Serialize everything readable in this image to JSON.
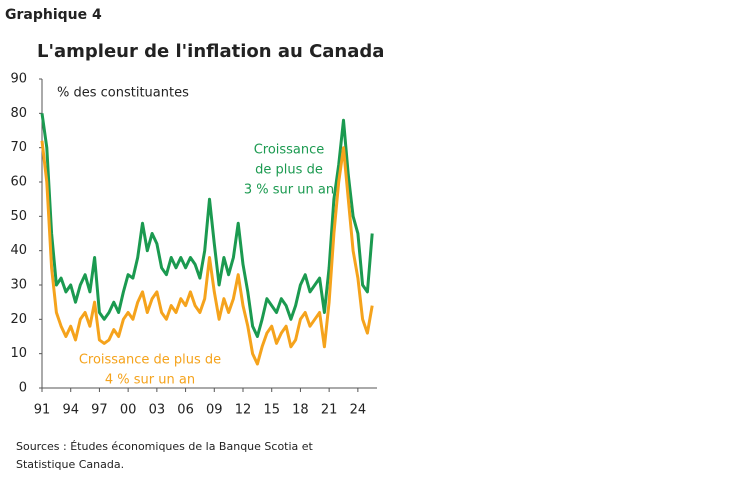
{
  "label": "Graphique 4",
  "chart_data": {
    "type": "line",
    "title": "L'ampleur de l'inflation au Canada",
    "y_label": "% des constituantes",
    "x": [
      1991.0,
      1991.5,
      1992.0,
      1992.5,
      1993.0,
      1993.5,
      1994.0,
      1994.5,
      1995.0,
      1995.5,
      1996.0,
      1996.5,
      1997.0,
      1997.5,
      1998.0,
      1998.5,
      1999.0,
      1999.5,
      2000.0,
      2000.5,
      2001.0,
      2001.5,
      2002.0,
      2002.5,
      2003.0,
      2003.5,
      2004.0,
      2004.5,
      2005.0,
      2005.5,
      2006.0,
      2006.5,
      2007.0,
      2007.5,
      2008.0,
      2008.5,
      2009.0,
      2009.5,
      2010.0,
      2010.5,
      2011.0,
      2011.5,
      2012.0,
      2012.5,
      2013.0,
      2013.5,
      2014.0,
      2014.5,
      2015.0,
      2015.5,
      2016.0,
      2016.5,
      2017.0,
      2017.5,
      2018.0,
      2018.5,
      2019.0,
      2019.5,
      2020.0,
      2020.5,
      2021.0,
      2021.5,
      2022.0,
      2022.5,
      2023.0,
      2023.5,
      2024.0,
      2024.5,
      2025.0,
      2025.5
    ],
    "series": [
      {
        "name": [
          "Croissance",
          "de plus de",
          "3 % sur un an"
        ],
        "color": "#1b9a50",
        "values": [
          80,
          70,
          45,
          30,
          32,
          28,
          30,
          25,
          30,
          33,
          28,
          38,
          22,
          20,
          22,
          25,
          22,
          28,
          33,
          32,
          38,
          48,
          40,
          45,
          42,
          35,
          33,
          38,
          35,
          38,
          35,
          38,
          36,
          32,
          40,
          55,
          42,
          30,
          38,
          33,
          38,
          48,
          36,
          28,
          18,
          15,
          20,
          26,
          24,
          22,
          26,
          24,
          20,
          24,
          30,
          33,
          28,
          30,
          32,
          22,
          35,
          55,
          65,
          78,
          62,
          50,
          45,
          30,
          28,
          45
        ]
      },
      {
        "name": [
          "Croissance de plus de",
          "4 % sur un an"
        ],
        "color": "#f5a31c",
        "values": [
          72,
          60,
          35,
          22,
          18,
          15,
          18,
          14,
          20,
          22,
          18,
          25,
          14,
          13,
          14,
          17,
          15,
          20,
          22,
          20,
          25,
          28,
          22,
          26,
          28,
          22,
          20,
          24,
          22,
          26,
          24,
          28,
          24,
          22,
          26,
          38,
          28,
          20,
          26,
          22,
          26,
          33,
          24,
          18,
          10,
          7,
          12,
          16,
          18,
          13,
          16,
          18,
          12,
          14,
          20,
          22,
          18,
          20,
          22,
          12,
          25,
          45,
          60,
          70,
          55,
          40,
          32,
          20,
          16,
          24
        ]
      }
    ],
    "xlim": [
      1991,
      2026
    ],
    "ylim": [
      0,
      90
    ],
    "yticks": [
      0,
      10,
      20,
      30,
      40,
      50,
      60,
      70,
      80,
      90
    ],
    "xticks": [
      {
        "value": 1991,
        "label": "91"
      },
      {
        "value": 1994,
        "label": "94"
      },
      {
        "value": 1997,
        "label": "97"
      },
      {
        "value": 2000,
        "label": "00"
      },
      {
        "value": 2003,
        "label": "03"
      },
      {
        "value": 2006,
        "label": "06"
      },
      {
        "value": 2009,
        "label": "09"
      },
      {
        "value": 2012,
        "label": "12"
      },
      {
        "value": 2015,
        "label": "15"
      },
      {
        "value": 2018,
        "label": "18"
      },
      {
        "value": 2021,
        "label": "21"
      },
      {
        "value": 2024,
        "label": "24"
      }
    ],
    "grid": false
  },
  "source": [
    "Sources : Études économiques de la Banque Scotia et",
    "Statistique Canada."
  ]
}
